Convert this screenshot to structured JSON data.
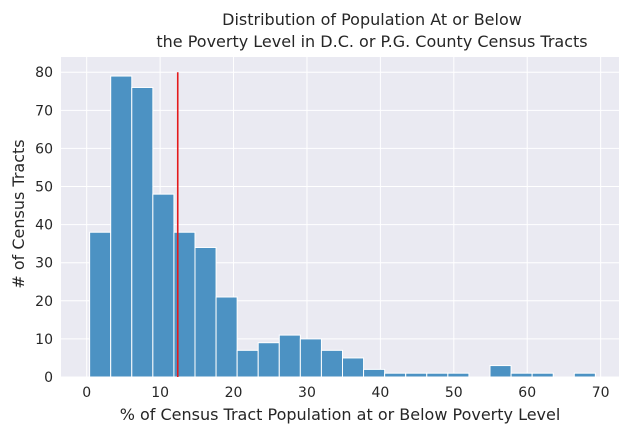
{
  "chart_data": {
    "type": "bar",
    "title_lines": [
      "Distribution of Population At or Below",
      "the Poverty Level in D.C. or P.G. County Census Tracts"
    ],
    "xlabel": "% of Census Tract Population at or Below Poverty Level",
    "ylabel": "# of Census Tracts",
    "xlim": [
      -3.5,
      72.5
    ],
    "ylim": [
      0,
      84
    ],
    "xticks": [
      0,
      10,
      20,
      30,
      40,
      50,
      60,
      70
    ],
    "yticks": [
      0,
      10,
      20,
      30,
      40,
      50,
      60,
      70,
      80
    ],
    "grid": true,
    "bin_edges": [
      0.4,
      3.27,
      6.14,
      9.01,
      11.88,
      14.75,
      17.62,
      20.49,
      23.36,
      26.23,
      29.1,
      31.97,
      34.84,
      37.71,
      40.58,
      43.45,
      46.32,
      49.19,
      52.06,
      54.93,
      57.8,
      60.67,
      63.54,
      66.41,
      69.28
    ],
    "counts": [
      38,
      79,
      76,
      48,
      38,
      34,
      21,
      7,
      9,
      11,
      10,
      7,
      5,
      2,
      1,
      1,
      1,
      1,
      0,
      3,
      1,
      1,
      0,
      1
    ],
    "reference_line": {
      "x": 12.4,
      "y_range": [
        0,
        80
      ]
    },
    "colors": {
      "bar": "#4c92c3",
      "bar_edge": "#ffffff",
      "plot_bg": "#eaeaf2",
      "grid": "#ffffff",
      "reference_line": "#e41a1c"
    }
  }
}
